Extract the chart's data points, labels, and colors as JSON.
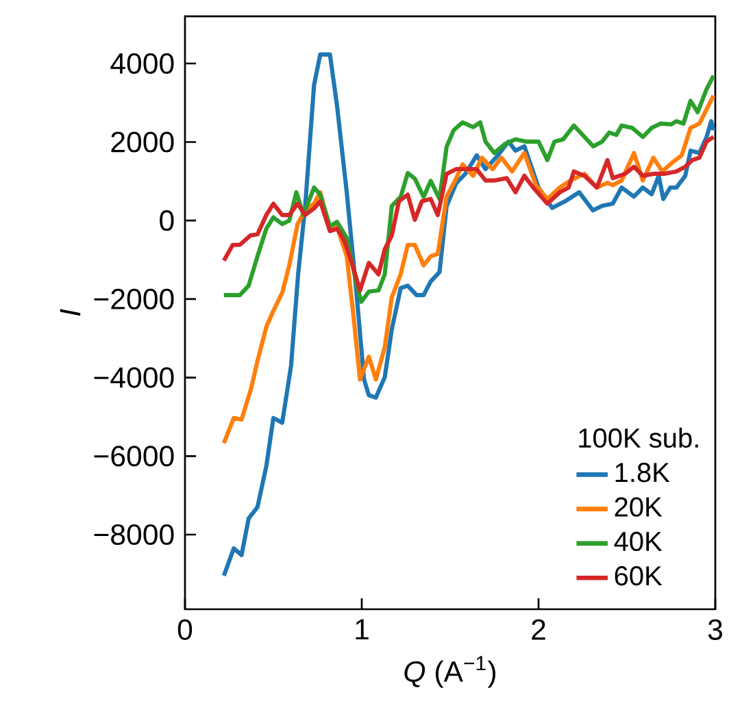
{
  "chart_data": {
    "type": "line",
    "xlabel": "*Q* (A$^{−1}$)",
    "ylabel": "*I*",
    "legend_title": "100K sub.",
    "legend": "bottom right",
    "grid": false,
    "xlim": [
      0,
      3
    ],
    "ylim": [
      -9900,
      5200
    ],
    "xticks": [
      0,
      1,
      2,
      3
    ],
    "yticks": [
      {
        "value": -8000,
        "label": "−8000"
      },
      {
        "value": -6000,
        "label": "−6000"
      },
      {
        "value": -4000,
        "label": "−4000"
      },
      {
        "value": -2000,
        "label": "−2000"
      },
      0,
      2000,
      4000
    ],
    "series": [
      {
        "name": "1.8K",
        "color": "#1f77b4",
        "x": [
          0.22,
          0.276,
          0.32,
          0.36,
          0.41,
          0.46,
          0.5,
          0.55,
          0.6,
          0.64,
          0.68,
          0.73,
          0.765,
          0.82,
          0.86,
          0.915,
          0.97,
          1.013,
          1.04,
          1.08,
          1.13,
          1.17,
          1.22,
          1.26,
          1.31,
          1.35,
          1.39,
          1.44,
          1.48,
          1.535,
          1.586,
          1.65,
          1.7,
          1.77,
          1.83,
          1.87,
          1.92,
          2.0,
          2.077,
          2.15,
          2.23,
          2.308,
          2.36,
          2.42,
          2.47,
          2.54,
          2.59,
          2.64,
          2.68,
          2.706,
          2.745,
          2.78,
          2.83,
          2.86,
          2.91,
          2.95,
          2.977,
          2.99
        ],
        "values": [
          -9047,
          -8350,
          -8520,
          -7590,
          -7300,
          -6260,
          -5030,
          -5150,
          -3700,
          -1370,
          370,
          3450,
          4230,
          4230,
          2930,
          720,
          -1840,
          -4050,
          -4450,
          -4510,
          -3990,
          -2770,
          -1720,
          -1660,
          -1900,
          -1900,
          -1550,
          -1310,
          370,
          955,
          1190,
          1660,
          1310,
          1660,
          2010,
          1780,
          1890,
          840,
          320,
          490,
          720,
          260,
          373,
          430,
          840,
          610,
          840,
          670,
          1140,
          550,
          840,
          840,
          1140,
          1780,
          1720,
          2120,
          2530,
          2300
        ]
      },
      {
        "name": "20K",
        "color": "#ff7f0e",
        "x": [
          0.22,
          0.276,
          0.32,
          0.374,
          0.41,
          0.46,
          0.5,
          0.55,
          0.59,
          0.637,
          0.68,
          0.73,
          0.765,
          0.82,
          0.86,
          0.915,
          0.95,
          0.99,
          1.04,
          1.08,
          1.13,
          1.17,
          1.22,
          1.26,
          1.3,
          1.35,
          1.39,
          1.43,
          1.48,
          1.535,
          1.57,
          1.63,
          1.68,
          1.74,
          1.79,
          1.85,
          1.92,
          1.985,
          2.05,
          2.12,
          2.18,
          2.26,
          2.33,
          2.39,
          2.42,
          2.47,
          2.54,
          2.59,
          2.65,
          2.7,
          2.76,
          2.81,
          2.86,
          2.91,
          2.95,
          2.99
        ],
        "values": [
          -5670,
          -5030,
          -5070,
          -4280,
          -3580,
          -2710,
          -2300,
          -1840,
          -1140,
          -90,
          260,
          430,
          720,
          -210,
          -150,
          -910,
          -2300,
          -4050,
          -3470,
          -4050,
          -3230,
          -1950,
          -1370,
          -620,
          -620,
          -1140,
          -910,
          -850,
          610,
          1080,
          1430,
          1140,
          1600,
          1310,
          1600,
          1250,
          1720,
          900,
          550,
          840,
          1020,
          1190,
          840,
          960,
          900,
          1020,
          1720,
          1020,
          1600,
          1250,
          1490,
          1660,
          2360,
          2470,
          2830,
          3180
        ]
      },
      {
        "name": "40K",
        "color": "#2ca02c",
        "x": [
          0.22,
          0.31,
          0.36,
          0.41,
          0.46,
          0.5,
          0.55,
          0.59,
          0.63,
          0.67,
          0.73,
          0.765,
          0.82,
          0.86,
          0.915,
          0.97,
          0.997,
          1.04,
          1.095,
          1.13,
          1.17,
          1.22,
          1.26,
          1.3,
          1.35,
          1.39,
          1.44,
          1.48,
          1.52,
          1.57,
          1.63,
          1.67,
          1.7,
          1.75,
          1.81,
          1.87,
          1.93,
          2.0,
          2.05,
          2.09,
          2.14,
          2.2,
          2.26,
          2.31,
          2.36,
          2.4,
          2.44,
          2.47,
          2.53,
          2.59,
          2.64,
          2.69,
          2.75,
          2.78,
          2.82,
          2.86,
          2.9,
          2.95,
          2.99
        ],
        "values": [
          -1900,
          -1900,
          -1660,
          -910,
          -210,
          80,
          -90,
          0,
          720,
          140,
          840,
          660,
          -150,
          -35,
          -440,
          -1600,
          -2070,
          -1810,
          -1780,
          -1370,
          370,
          600,
          1210,
          1070,
          600,
          1010,
          550,
          1880,
          2300,
          2500,
          2380,
          2500,
          2010,
          1720,
          1950,
          2070,
          2010,
          2010,
          1540,
          2010,
          2070,
          2420,
          2130,
          1890,
          2010,
          2240,
          2180,
          2420,
          2360,
          2130,
          2360,
          2470,
          2450,
          2530,
          2470,
          3050,
          2760,
          3340,
          3690
        ]
      },
      {
        "name": "60K",
        "color": "#d62728",
        "x": [
          0.22,
          0.27,
          0.31,
          0.37,
          0.41,
          0.46,
          0.5,
          0.55,
          0.59,
          0.637,
          0.68,
          0.73,
          0.765,
          0.82,
          0.86,
          0.9,
          0.94,
          0.99,
          1.04,
          1.095,
          1.13,
          1.17,
          1.21,
          1.26,
          1.3,
          1.34,
          1.39,
          1.43,
          1.48,
          1.535,
          1.6,
          1.65,
          1.7,
          1.75,
          1.82,
          1.87,
          1.92,
          1.97,
          2.05,
          2.12,
          2.17,
          2.2,
          2.26,
          2.33,
          2.39,
          2.42,
          2.49,
          2.54,
          2.59,
          2.65,
          2.71,
          2.78,
          2.83,
          2.87,
          2.91,
          2.95,
          2.99
        ],
        "values": [
          -1020,
          -620,
          -620,
          -380,
          -350,
          140,
          430,
          140,
          140,
          430,
          140,
          310,
          490,
          -270,
          -210,
          -500,
          -1020,
          -1780,
          -1080,
          -1370,
          -730,
          -380,
          490,
          660,
          20,
          490,
          550,
          140,
          1190,
          1310,
          1310,
          1310,
          1020,
          1020,
          1080,
          720,
          1140,
          840,
          430,
          720,
          840,
          1250,
          1140,
          840,
          1540,
          1080,
          1190,
          1370,
          1140,
          1190,
          1190,
          1250,
          1370,
          1540,
          1600,
          2010,
          2130
        ]
      }
    ]
  }
}
